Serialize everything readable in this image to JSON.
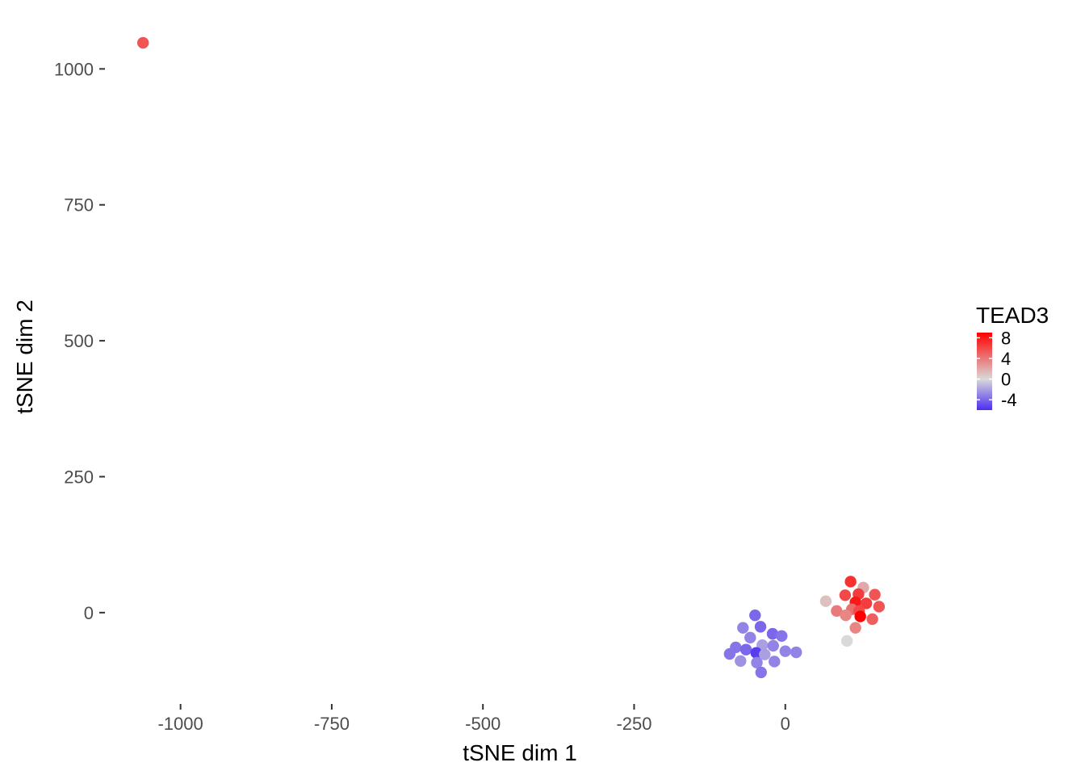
{
  "chart_data": {
    "type": "scatter",
    "title": "",
    "xlabel": "tSNE dim 1",
    "ylabel": "tSNE dim 2",
    "xlim": [
      -1125,
      290
    ],
    "ylim": [
      -168,
      1100
    ],
    "x_ticks": [
      -1000,
      -750,
      -500,
      -250,
      0
    ],
    "x_tick_labels": [
      "-1000",
      "-750",
      "-500",
      "-250",
      "0"
    ],
    "y_ticks": [
      0,
      250,
      500,
      750,
      1000
    ],
    "y_tick_labels": [
      "0",
      "250",
      "500",
      "750",
      "1000"
    ],
    "grid": false,
    "legend": {
      "title": "TEAD3",
      "placement": "right",
      "type": "colorbar",
      "range": [
        -6,
        9
      ],
      "ticks": [
        8,
        4,
        0,
        -4
      ],
      "tick_labels": [
        "8",
        "4",
        "0",
        "-4"
      ],
      "low_color": "#4b2ef2",
      "mid_color": "#d9d9d9",
      "high_color": "#ff0000"
    },
    "color_by": "TEAD3",
    "points": [
      {
        "x": -1062,
        "y": 1048,
        "v": 5.5
      },
      {
        "x": 108,
        "y": 57,
        "v": 7
      },
      {
        "x": 129,
        "y": 46,
        "v": 2
      },
      {
        "x": 99,
        "y": 32,
        "v": 6
      },
      {
        "x": 121,
        "y": 34,
        "v": 6.5
      },
      {
        "x": 148,
        "y": 33,
        "v": 5.5
      },
      {
        "x": 67,
        "y": 21,
        "v": 1
      },
      {
        "x": 116,
        "y": 19,
        "v": 8
      },
      {
        "x": 134,
        "y": 17,
        "v": 6.5
      },
      {
        "x": 155,
        "y": 11,
        "v": 5.5
      },
      {
        "x": 110,
        "y": 6,
        "v": 4.5
      },
      {
        "x": 122,
        "y": 3,
        "v": 6
      },
      {
        "x": 85,
        "y": 3,
        "v": 4
      },
      {
        "x": 100,
        "y": -5,
        "v": 3.5
      },
      {
        "x": 124,
        "y": -7,
        "v": 9
      },
      {
        "x": 144,
        "y": -12,
        "v": 5
      },
      {
        "x": 116,
        "y": -28,
        "v": 3.5
      },
      {
        "x": 102,
        "y": -52,
        "v": 0
      },
      {
        "x": -50,
        "y": -5,
        "v": -4
      },
      {
        "x": -41,
        "y": -26,
        "v": -4
      },
      {
        "x": -70,
        "y": -28,
        "v": -3
      },
      {
        "x": -21,
        "y": -39,
        "v": -4
      },
      {
        "x": -6,
        "y": -43,
        "v": -3.5
      },
      {
        "x": -58,
        "y": -46,
        "v": -3
      },
      {
        "x": -38,
        "y": -60,
        "v": -2
      },
      {
        "x": -20,
        "y": -61,
        "v": -3
      },
      {
        "x": -82,
        "y": -64,
        "v": -3.5
      },
      {
        "x": -65,
        "y": -68,
        "v": -4
      },
      {
        "x": 0,
        "y": -71,
        "v": -3
      },
      {
        "x": 18,
        "y": -73,
        "v": -3
      },
      {
        "x": -48,
        "y": -74,
        "v": -5.5
      },
      {
        "x": -34,
        "y": -77,
        "v": -2
      },
      {
        "x": -92,
        "y": -76,
        "v": -3.5
      },
      {
        "x": -74,
        "y": -89,
        "v": -2.5
      },
      {
        "x": -47,
        "y": -92,
        "v": -3
      },
      {
        "x": -18,
        "y": -90,
        "v": -3
      },
      {
        "x": -40,
        "y": -110,
        "v": -3.5
      }
    ]
  }
}
